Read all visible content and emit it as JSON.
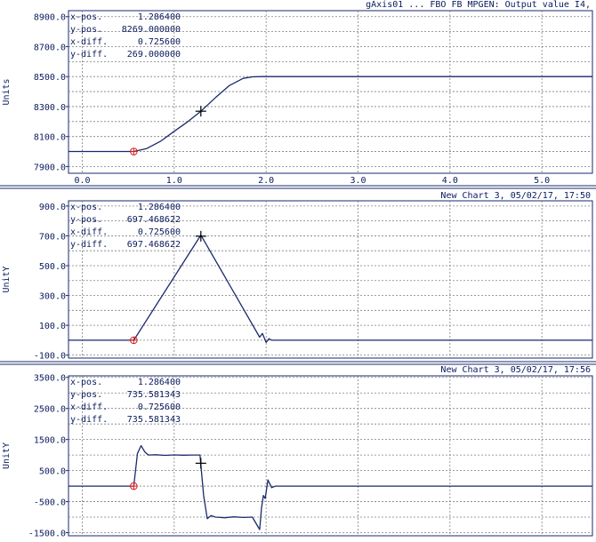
{
  "theme": {
    "background": "#ffffff",
    "trace_color": "#1a2a6c",
    "grid_color": "#7f7f7f",
    "text_color": "#0a1a5c",
    "marker_color": "#d02020",
    "separator_color": "#1a2a6c"
  },
  "chart_data": [
    {
      "type": "line",
      "title": "gAxis01 ... FBO FB MPGEN: Output value I4,",
      "ylabel": "Units",
      "xlim": [
        -0.15,
        5.55
      ],
      "ylim": [
        7855,
        8940
      ],
      "grid": true,
      "x_ticks": [
        0,
        1,
        2,
        3,
        4,
        5
      ],
      "x_tick_labels": [
        "0.0",
        "1.0",
        "2.0",
        "3.0",
        "4.0",
        "5.0"
      ],
      "y_ticks": [
        7900,
        8100,
        8300,
        8500,
        8700,
        8900
      ],
      "y_tick_labels": [
        "7900.0",
        "8100.0",
        "8300.0",
        "8500.0",
        "8700.0",
        "8900.0"
      ],
      "readout": [
        {
          "label": "x-pos.",
          "value": "1.286400"
        },
        {
          "label": "y-pos.",
          "value": "8269.000000"
        },
        {
          "label": "x-diff.",
          "value": "0.725600"
        },
        {
          "label": "y-diff.",
          "value": "269.000000"
        }
      ],
      "series": [
        {
          "x": [
            -0.15,
            0.56,
            0.7,
            0.85,
            1.0,
            1.15,
            1.29,
            1.45,
            1.6,
            1.75,
            1.85,
            1.95,
            5.55
          ],
          "y": [
            8000,
            8000,
            8020,
            8068,
            8135,
            8200,
            8269,
            8360,
            8440,
            8488,
            8498,
            8500,
            8500
          ]
        }
      ],
      "reference_marker": {
        "x": 0.56,
        "y": 8000
      },
      "cursor": {
        "x": 1.29,
        "y": 8269
      }
    },
    {
      "type": "line",
      "title": "New Chart 3, 05/02/17, 17:50",
      "ylabel": "UnitY",
      "xlim": [
        -0.15,
        5.55
      ],
      "ylim": [
        -120,
        935
      ],
      "grid": true,
      "x_ticks": [
        0,
        1,
        2,
        3,
        4,
        5
      ],
      "y_ticks": [
        -100,
        100,
        300,
        500,
        700,
        900
      ],
      "y_tick_labels": [
        "-100.0",
        "100.0",
        "300.0",
        "500.0",
        "700.0",
        "900.0"
      ],
      "readout": [
        {
          "label": "x-pos.",
          "value": "1.286400"
        },
        {
          "label": "y-pos.",
          "value": "697.468622"
        },
        {
          "label": "x-diff.",
          "value": "0.725600"
        },
        {
          "label": "y-diff.",
          "value": "697.468622"
        }
      ],
      "series": [
        {
          "x": [
            -0.15,
            0.56,
            1.29,
            1.93,
            1.96,
            2.0,
            2.03,
            2.06,
            5.55
          ],
          "y": [
            0,
            0,
            705,
            20,
            45,
            -15,
            10,
            0,
            0
          ]
        }
      ],
      "reference_marker": {
        "x": 0.56,
        "y": 0
      },
      "cursor": {
        "x": 1.29,
        "y": 697.5
      }
    },
    {
      "type": "line",
      "title": "New Chart 3, 05/02/17, 17:56",
      "ylabel": "UnitY",
      "xlim": [
        -0.15,
        5.55
      ],
      "ylim": [
        -1600,
        3550
      ],
      "grid": true,
      "x_ticks": [
        0,
        1,
        2,
        3,
        4,
        5
      ],
      "y_ticks": [
        -1500,
        -500,
        500,
        1500,
        2500,
        3500
      ],
      "y_tick_labels": [
        "-1500.0",
        "-500.0",
        "500.0",
        "1500.0",
        "2500.0",
        "3500.0"
      ],
      "readout": [
        {
          "label": "x-pos.",
          "value": "1.286400"
        },
        {
          "label": "y-pos.",
          "value": "735.581343"
        },
        {
          "label": "x-diff.",
          "value": "0.725600"
        },
        {
          "label": "y-diff.",
          "value": "735.581343"
        }
      ],
      "series": [
        {
          "x": [
            -0.15,
            0.56,
            0.6,
            0.64,
            0.68,
            0.72,
            0.8,
            0.9,
            1.0,
            1.1,
            1.2,
            1.28,
            1.32,
            1.36,
            1.4,
            1.45,
            1.55,
            1.65,
            1.75,
            1.85,
            1.93,
            1.95,
            1.97,
            1.99,
            2.02,
            2.06,
            2.1,
            5.55
          ],
          "y": [
            0,
            0,
            1050,
            1300,
            1100,
            1000,
            1010,
            990,
            1005,
            995,
            1000,
            1000,
            -300,
            -1050,
            -950,
            -1000,
            -1020,
            -990,
            -1010,
            -1000,
            -1400,
            -700,
            -300,
            -400,
            200,
            -50,
            0,
            0
          ]
        }
      ],
      "reference_marker": {
        "x": 0.56,
        "y": 0
      },
      "cursor": {
        "x": 1.29,
        "y": 735.6
      }
    }
  ]
}
